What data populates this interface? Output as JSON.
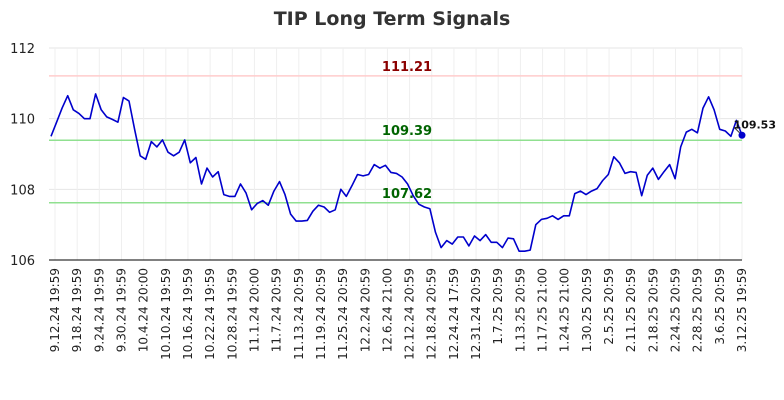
{
  "chart_data": {
    "type": "line",
    "title": "TIP Long Term Signals",
    "ylim": [
      106,
      112
    ],
    "yticks": [
      "106",
      "108",
      "110",
      "112"
    ],
    "grid": true,
    "x_tick_labels": [
      "9.12.24 19:59",
      "9.18.24 19:59",
      "9.24.24 19:59",
      "9.30.24 19:59",
      "10.4.24 20:00",
      "10.10.24 19:59",
      "10.16.24 19:59",
      "10.22.24 19:59",
      "10.28.24 19:59",
      "11.1.24 20:00",
      "11.7.24 20:59",
      "11.13.24 20:59",
      "11.19.24 20:59",
      "11.25.24 20:59",
      "12.2.24 20:59",
      "12.6.24 21:00",
      "12.12.24 20:59",
      "12.18.24 20:59",
      "12.24.24 17:59",
      "12.31.24 20:59",
      "1.7.25 20:59",
      "1.13.25 20:59",
      "1.17.25 21:00",
      "1.24.25 21:00",
      "1.30.25 20:59",
      "2.5.25 20:59",
      "2.11.25 20:59",
      "2.18.25 20:59",
      "2.24.25 20:59",
      "2.28.25 20:59",
      "3.6.25 20:59",
      "3.12.25 19:59"
    ],
    "series": [
      {
        "color": "#0000cc",
        "values": [
          109.5,
          109.9,
          110.3,
          110.65,
          110.25,
          110.15,
          110.0,
          110.0,
          110.7,
          110.25,
          110.05,
          109.98,
          109.9,
          110.6,
          110.5,
          109.7,
          108.95,
          108.85,
          109.35,
          109.2,
          109.4,
          109.05,
          108.95,
          109.05,
          109.4,
          108.75,
          108.9,
          108.15,
          108.6,
          108.35,
          108.5,
          107.85,
          107.8,
          107.8,
          108.15,
          107.9,
          107.42,
          107.6,
          107.68,
          107.55,
          107.95,
          108.22,
          107.85,
          107.3,
          107.1,
          107.1,
          107.12,
          107.38,
          107.55,
          107.5,
          107.35,
          107.42,
          108.0,
          107.8,
          108.1,
          108.42,
          108.38,
          108.42,
          108.7,
          108.6,
          108.68,
          108.48,
          108.45,
          108.35,
          108.15,
          107.82,
          107.58,
          107.5,
          107.45,
          106.78,
          106.35,
          106.55,
          106.45,
          106.65,
          106.65,
          106.4,
          106.68,
          106.55,
          106.72,
          106.5,
          106.5,
          106.35,
          106.62,
          106.6,
          106.25,
          106.25,
          106.28,
          107.0,
          107.15,
          107.18,
          107.25,
          107.15,
          107.25,
          107.25,
          107.88,
          107.95,
          107.85,
          107.95,
          108.02,
          108.25,
          108.42,
          108.92,
          108.75,
          108.45,
          108.5,
          108.48,
          107.82,
          108.4,
          108.6,
          108.28,
          108.5,
          108.7,
          108.3,
          109.2,
          109.62,
          109.7,
          109.6,
          110.3,
          110.62,
          110.25,
          109.7,
          109.65,
          109.5,
          109.95,
          109.53
        ]
      }
    ],
    "h_lines": [
      {
        "value": 111.21,
        "label": "111.21",
        "line_color": "#ffcccc",
        "label_color": "#8b0000"
      },
      {
        "value": 109.39,
        "label": "109.39",
        "line_color": "#90e090",
        "label_color": "#006400"
      },
      {
        "value": 107.62,
        "label": "107.62",
        "line_color": "#90e090",
        "label_color": "#006400"
      }
    ],
    "last_value": "109.53",
    "last_point_color": "#0000cc"
  }
}
